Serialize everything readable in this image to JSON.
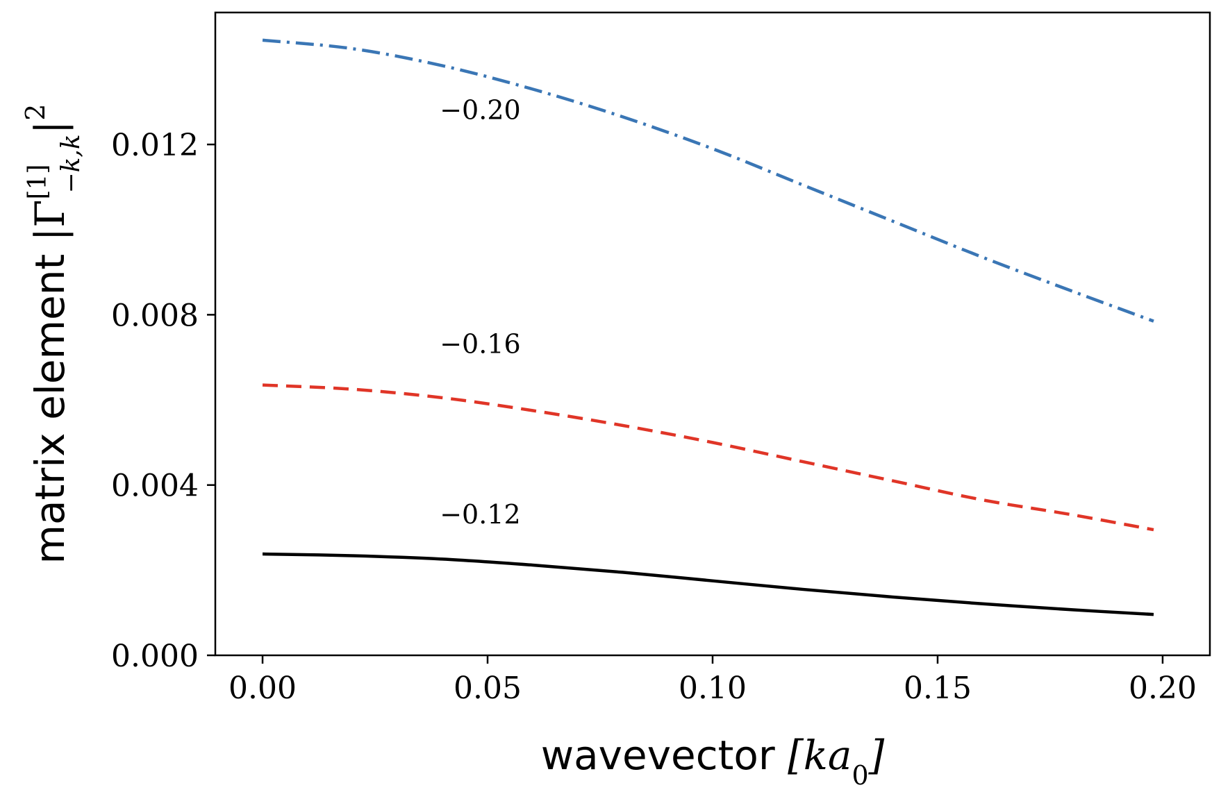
{
  "chart_data": {
    "type": "line",
    "xlabel": {
      "text": "wavevector",
      "math": "[ka",
      "math_sub": "0",
      "math_close": "]"
    },
    "ylabel": {
      "text": "matrix element",
      "math_open": "|Γ",
      "sup": "[1]",
      "sub": "−k,k",
      "math_close": "|",
      "power": "2"
    },
    "xlim": [
      -0.0105,
      0.2105
    ],
    "ylim": [
      0.0,
      0.0151
    ],
    "xticks": [
      "0.00",
      "0.05",
      "0.10",
      "0.15",
      "0.20"
    ],
    "xtick_values": [
      0.0,
      0.05,
      0.1,
      0.15,
      0.2
    ],
    "yticks": [
      "0.000",
      "0.004",
      "0.008",
      "0.012"
    ],
    "ytick_values": [
      0.0,
      0.004,
      0.008,
      0.012
    ],
    "grid": false,
    "legend": "none",
    "x": [
      0.0,
      0.02,
      0.04,
      0.06,
      0.08,
      0.1,
      0.12,
      0.14,
      0.16,
      0.18,
      0.198
    ],
    "series": [
      {
        "label": "−0.20",
        "label_at": [
          0.04,
          0.0126
        ],
        "color": "#3a76b5",
        "dash": "dashdot",
        "values": [
          0.01445,
          0.01425,
          0.01385,
          0.0133,
          0.01265,
          0.0119,
          0.01105,
          0.0102,
          0.00935,
          0.00855,
          0.00785
        ]
      },
      {
        "label": "−0.16",
        "label_at": [
          0.04,
          0.0071
        ],
        "color": "#e03527",
        "dash": "dashed",
        "values": [
          0.00635,
          0.00625,
          0.00605,
          0.00575,
          0.0054,
          0.005,
          0.00455,
          0.0041,
          0.00365,
          0.0033,
          0.00295
        ]
      },
      {
        "label": "−0.12",
        "label_at": [
          0.04,
          0.0031
        ],
        "color": "#000000",
        "dash": "solid",
        "values": [
          0.00238,
          0.00234,
          0.00226,
          0.00212,
          0.00195,
          0.00175,
          0.00155,
          0.00137,
          0.00121,
          0.00107,
          0.00096
        ]
      }
    ]
  }
}
